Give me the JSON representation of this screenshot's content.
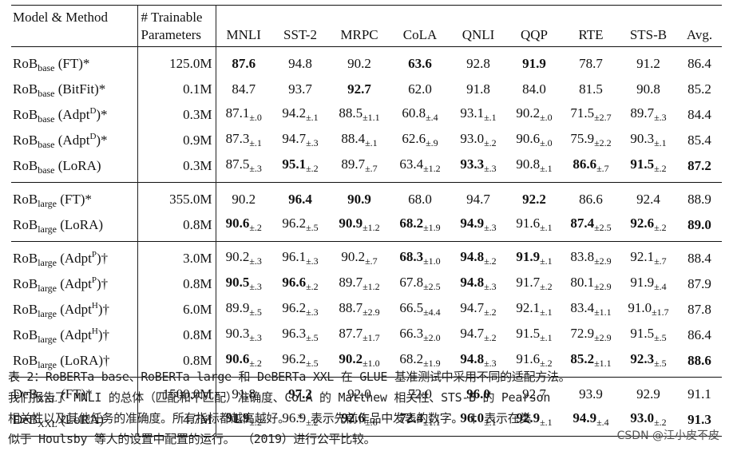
{
  "table": {
    "header": {
      "model": "Model & Method",
      "params_line1": "# Trainable",
      "params_line2": "Parameters",
      "columns": [
        "MNLI",
        "SST-2",
        "MRPC",
        "CoLA",
        "QNLI",
        "QQP",
        "RTE",
        "STS-B",
        "Avg."
      ]
    },
    "groups": [
      [
        {
          "base": "RoB",
          "sub": "base",
          "pre": " (FT)*",
          "sup": "",
          "post": "",
          "params": "125.0M",
          "cells": [
            [
              "87.6",
              "",
              true
            ],
            [
              "94.8",
              "",
              false
            ],
            [
              "90.2",
              "",
              false
            ],
            [
              "63.6",
              "",
              true
            ],
            [
              "92.8",
              "",
              false
            ],
            [
              "91.9",
              "",
              true
            ],
            [
              "78.7",
              "",
              false
            ],
            [
              "91.2",
              "",
              false
            ],
            [
              "86.4",
              "",
              false
            ]
          ]
        },
        {
          "base": "RoB",
          "sub": "base",
          "pre": " (BitFit)*",
          "sup": "",
          "post": "",
          "params": "0.1M",
          "cells": [
            [
              "84.7",
              "",
              false
            ],
            [
              "93.7",
              "",
              false
            ],
            [
              "92.7",
              "",
              true
            ],
            [
              "62.0",
              "",
              false
            ],
            [
              "91.8",
              "",
              false
            ],
            [
              "84.0",
              "",
              false
            ],
            [
              "81.5",
              "",
              false
            ],
            [
              "90.8",
              "",
              false
            ],
            [
              "85.2",
              "",
              false
            ]
          ]
        },
        {
          "base": "RoB",
          "sub": "base",
          "pre": " (Adpt",
          "sup": "D",
          "post": ")*",
          "params": "0.3M",
          "cells": [
            [
              "87.1",
              "±.0",
              false
            ],
            [
              "94.2",
              "±.1",
              false
            ],
            [
              "88.5",
              "±1.1",
              false
            ],
            [
              "60.8",
              "±.4",
              false
            ],
            [
              "93.1",
              "±.1",
              false
            ],
            [
              "90.2",
              "±.0",
              false
            ],
            [
              "71.5",
              "±2.7",
              false
            ],
            [
              "89.7",
              "±.3",
              false
            ],
            [
              "84.4",
              "",
              false
            ]
          ]
        },
        {
          "base": "RoB",
          "sub": "base",
          "pre": " (Adpt",
          "sup": "D",
          "post": ")*",
          "params": "0.9M",
          "cells": [
            [
              "87.3",
              "±.1",
              false
            ],
            [
              "94.7",
              "±.3",
              false
            ],
            [
              "88.4",
              "±.1",
              false
            ],
            [
              "62.6",
              "±.9",
              false
            ],
            [
              "93.0",
              "±.2",
              false
            ],
            [
              "90.6",
              "±.0",
              false
            ],
            [
              "75.9",
              "±2.2",
              false
            ],
            [
              "90.3",
              "±.1",
              false
            ],
            [
              "85.4",
              "",
              false
            ]
          ]
        },
        {
          "base": "RoB",
          "sub": "base",
          "pre": " (LoRA)",
          "sup": "",
          "post": "",
          "params": "0.3M",
          "cells": [
            [
              "87.5",
              "±.3",
              false
            ],
            [
              "95.1",
              "±.2",
              true
            ],
            [
              "89.7",
              "±.7",
              false
            ],
            [
              "63.4",
              "±1.2",
              false
            ],
            [
              "93.3",
              "±.3",
              true
            ],
            [
              "90.8",
              "±.1",
              false
            ],
            [
              "86.6",
              "±.7",
              true
            ],
            [
              "91.5",
              "±.2",
              true
            ],
            [
              "87.2",
              "",
              true
            ]
          ]
        }
      ],
      [
        {
          "base": "RoB",
          "sub": "large",
          "pre": " (FT)*",
          "sup": "",
          "post": "",
          "params": "355.0M",
          "cells": [
            [
              "90.2",
              "",
              false
            ],
            [
              "96.4",
              "",
              true
            ],
            [
              "90.9",
              "",
              true
            ],
            [
              "68.0",
              "",
              false
            ],
            [
              "94.7",
              "",
              false
            ],
            [
              "92.2",
              "",
              true
            ],
            [
              "86.6",
              "",
              false
            ],
            [
              "92.4",
              "",
              false
            ],
            [
              "88.9",
              "",
              false
            ]
          ]
        },
        {
          "base": "RoB",
          "sub": "large",
          "pre": " (LoRA)",
          "sup": "",
          "post": "",
          "params": "0.8M",
          "cells": [
            [
              "90.6",
              "±.2",
              true
            ],
            [
              "96.2",
              "±.5",
              false
            ],
            [
              "90.9",
              "±1.2",
              true
            ],
            [
              "68.2",
              "±1.9",
              true
            ],
            [
              "94.9",
              "±.3",
              true
            ],
            [
              "91.6",
              "±.1",
              false
            ],
            [
              "87.4",
              "±2.5",
              true
            ],
            [
              "92.6",
              "±.2",
              true
            ],
            [
              "89.0",
              "",
              true
            ]
          ]
        }
      ],
      [
        {
          "base": "RoB",
          "sub": "large",
          "pre": " (Adpt",
          "sup": "P",
          "post": ")†",
          "params": "3.0M",
          "cells": [
            [
              "90.2",
              "±.3",
              false
            ],
            [
              "96.1",
              "±.3",
              false
            ],
            [
              "90.2",
              "±.7",
              false
            ],
            [
              "68.3",
              "±1.0",
              true
            ],
            [
              "94.8",
              "±.2",
              true
            ],
            [
              "91.9",
              "±.1",
              true
            ],
            [
              "83.8",
              "±2.9",
              false
            ],
            [
              "92.1",
              "±.7",
              false
            ],
            [
              "88.4",
              "",
              false
            ]
          ]
        },
        {
          "base": "RoB",
          "sub": "large",
          "pre": " (Adpt",
          "sup": "P",
          "post": ")†",
          "params": "0.8M",
          "cells": [
            [
              "90.5",
              "±.3",
              true
            ],
            [
              "96.6",
              "±.2",
              true
            ],
            [
              "89.7",
              "±1.2",
              false
            ],
            [
              "67.8",
              "±2.5",
              false
            ],
            [
              "94.8",
              "±.3",
              true
            ],
            [
              "91.7",
              "±.2",
              false
            ],
            [
              "80.1",
              "±2.9",
              false
            ],
            [
              "91.9",
              "±.4",
              false
            ],
            [
              "87.9",
              "",
              false
            ]
          ]
        },
        {
          "base": "RoB",
          "sub": "large",
          "pre": " (Adpt",
          "sup": "H",
          "post": ")†",
          "params": "6.0M",
          "cells": [
            [
              "89.9",
              "±.5",
              false
            ],
            [
              "96.2",
              "±.3",
              false
            ],
            [
              "88.7",
              "±2.9",
              false
            ],
            [
              "66.5",
              "±4.4",
              false
            ],
            [
              "94.7",
              "±.2",
              false
            ],
            [
              "92.1",
              "±.1",
              false
            ],
            [
              "83.4",
              "±1.1",
              false
            ],
            [
              "91.0",
              "±1.7",
              false
            ],
            [
              "87.8",
              "",
              false
            ]
          ]
        },
        {
          "base": "RoB",
          "sub": "large",
          "pre": " (Adpt",
          "sup": "H",
          "post": ")†",
          "params": "0.8M",
          "cells": [
            [
              "90.3",
              "±.3",
              false
            ],
            [
              "96.3",
              "±.5",
              false
            ],
            [
              "87.7",
              "±1.7",
              false
            ],
            [
              "66.3",
              "±2.0",
              false
            ],
            [
              "94.7",
              "±.2",
              false
            ],
            [
              "91.5",
              "±.1",
              false
            ],
            [
              "72.9",
              "±2.9",
              false
            ],
            [
              "91.5",
              "±.5",
              false
            ],
            [
              "86.4",
              "",
              false
            ]
          ]
        },
        {
          "base": "RoB",
          "sub": "large",
          "pre": " (LoRA)†",
          "sup": "",
          "post": "",
          "params": "0.8M",
          "cells": [
            [
              "90.6",
              "±.2",
              true
            ],
            [
              "96.2",
              "±.5",
              false
            ],
            [
              "90.2",
              "±1.0",
              true
            ],
            [
              "68.2",
              "±1.9",
              false
            ],
            [
              "94.8",
              "±.3",
              true
            ],
            [
              "91.6",
              "±.2",
              false
            ],
            [
              "85.2",
              "±1.1",
              true
            ],
            [
              "92.3",
              "±.5",
              true
            ],
            [
              "88.6",
              "",
              true
            ]
          ]
        }
      ],
      [
        {
          "base": "DeB",
          "sub": "XXL",
          "pre": " (FT)*",
          "sup": "",
          "post": "",
          "params": "1500.0M",
          "cells": [
            [
              "91.8",
              "",
              false
            ],
            [
              "97.2",
              "",
              true
            ],
            [
              "92.0",
              "",
              false
            ],
            [
              "72.0",
              "",
              false
            ],
            [
              "96.0",
              "",
              true
            ],
            [
              "92.7",
              "",
              false
            ],
            [
              "93.9",
              "",
              false
            ],
            [
              "92.9",
              "",
              false
            ],
            [
              "91.1",
              "",
              false
            ]
          ]
        },
        {
          "base": "DeB",
          "sub": "XXL",
          "pre": " (LoRA)",
          "sup": "",
          "post": "",
          "params": "4.7M",
          "cells": [
            [
              "91.9",
              "±.2",
              true
            ],
            [
              "96.9",
              "±.2",
              false
            ],
            [
              "92.6",
              "±.6",
              true
            ],
            [
              "72.4",
              "±1.1",
              true
            ],
            [
              "96.0",
              "±.1",
              true
            ],
            [
              "92.9",
              "±.1",
              true
            ],
            [
              "94.9",
              "±.4",
              true
            ],
            [
              "93.0",
              "±.2",
              true
            ],
            [
              "91.3",
              "",
              true
            ]
          ]
        }
      ]
    ]
  },
  "caption": [
    "表 2：RoBERTa base、RoBERTa large 和 DeBERTa XXL 在 GLUE 基准测试中采用不同的适配方法。",
    "我们报告了 MNLI 的总体（匹配和不匹配）准确度、CoLA 的 Matthew 相关性、STS-B 的 Pearson",
    "相关性以及其他任务的准确度。所有指标都越高越好。 * 表示先前作品中发表的数字。 † 表示在类",
    "似于 Houlsby 等人的设置中配置的运行。 （2019）进行公平比较。"
  ],
  "credit": "CSDN @江小皮不皮"
}
